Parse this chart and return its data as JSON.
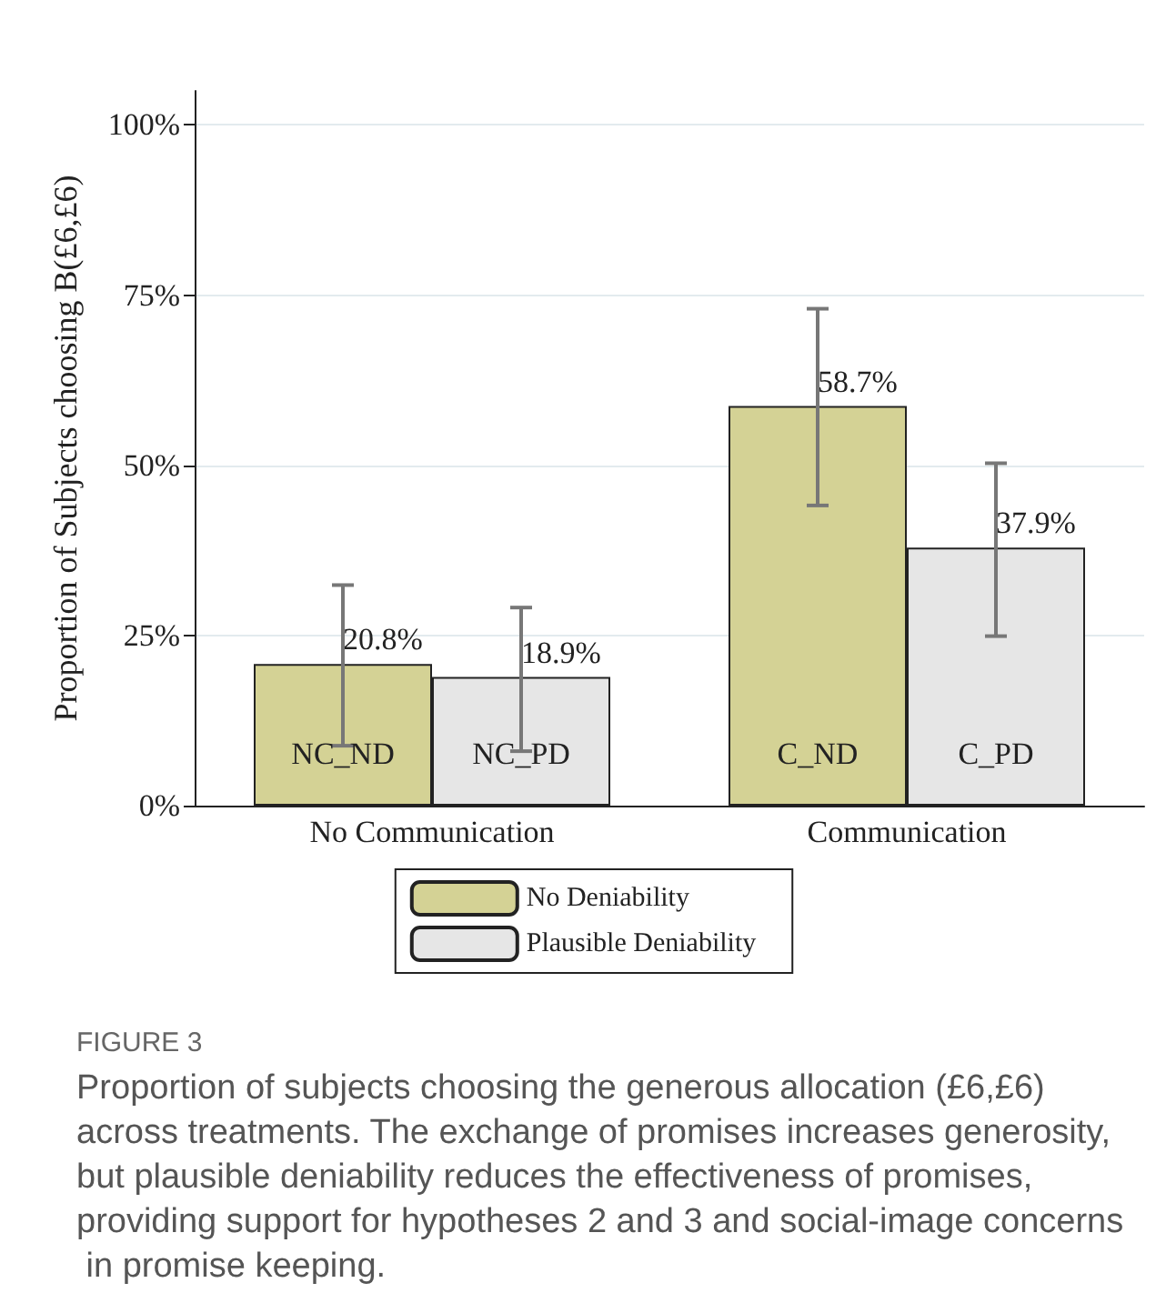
{
  "chart_data": {
    "type": "bar",
    "categories": [
      "No Communication",
      "Communication"
    ],
    "ylabel": "Proportion of Subjects choosing B(£6,£6)",
    "ylim": [
      0,
      105
    ],
    "yticks": [
      {
        "value": 0,
        "label": "0%"
      },
      {
        "value": 25,
        "label": "25%"
      },
      {
        "value": 50,
        "label": "50%"
      },
      {
        "value": 75,
        "label": "75%"
      },
      {
        "value": 100,
        "label": "100%"
      }
    ],
    "grid": "y",
    "legend": "bottom",
    "series": [
      {
        "name": "No Deniability",
        "color": "#d4d295",
        "values": [
          20.8,
          58.7
        ],
        "errors": [
          [
            8.8,
            32.4
          ],
          [
            44.1,
            73.0
          ]
        ],
        "value_labels": [
          "20.8%",
          "58.7%"
        ]
      },
      {
        "name": "Plausible Deniability",
        "color": "#e6e6e6",
        "values": [
          18.9,
          37.9
        ],
        "errors": [
          [
            8.0,
            29.1
          ],
          [
            24.9,
            50.3
          ]
        ],
        "value_labels": [
          "18.9%",
          "37.9%"
        ]
      }
    ],
    "annotations": [
      {
        "text": "NC_ND",
        "x": "No Communication",
        "y": 4
      },
      {
        "text": "NC_PD",
        "x": "No Communication",
        "y": 4
      },
      {
        "text": "C_ND",
        "x": "Communication",
        "y": 4
      },
      {
        "text": "C_PD",
        "x": "Communication",
        "y": 4
      },
      "FIGURE 3",
      "Proportion of subjects choosing the generous allocation (£6,£6) across treatments. The exchange of promises increases generosity, but plausible deniability reduces the effectiveness of promises, providing support for hypotheses 2 and 3 and social-image concerns in promise keeping."
    ]
  }
}
